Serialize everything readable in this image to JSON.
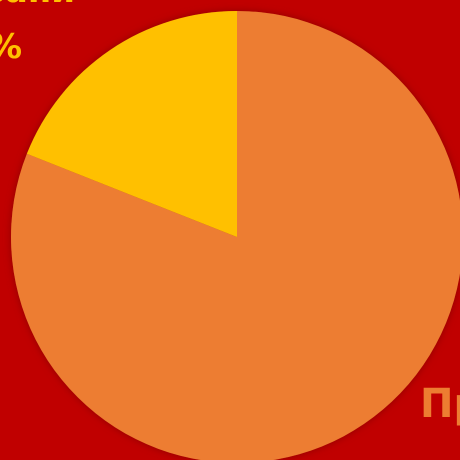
{
  "chart_data": {
    "type": "pie",
    "slices": [
      {
        "label": "Пр",
        "value": 81,
        "color": "#ed7d31"
      },
      {
        "label": "овани",
        "value": 19,
        "color": "#ffc000"
      }
    ],
    "data_labels": {
      "top_text": "овани",
      "top_pct": "%",
      "bottom_text": "Пр"
    },
    "background_color": "#c00000",
    "legend": "none"
  }
}
